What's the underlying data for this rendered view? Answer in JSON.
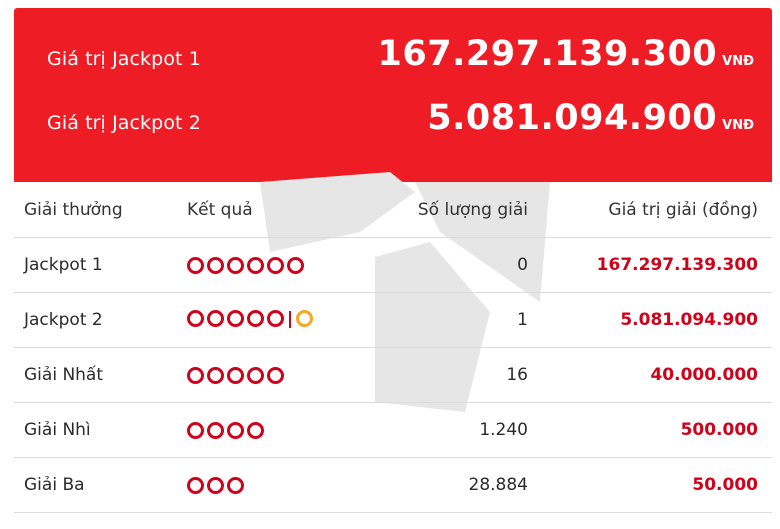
{
  "jackpots": [
    {
      "label": "Giá trị Jackpot 1",
      "value": "167.297.139.300",
      "unit": "VNĐ"
    },
    {
      "label": "Giá trị Jackpot 2",
      "value": "5.081.094.900",
      "unit": "VNĐ"
    }
  ],
  "table": {
    "headers": {
      "prize": "Giải thưởng",
      "result": "Kết quả",
      "count": "Số lượng giải",
      "value": "Giá trị giải (đồng)"
    },
    "rows": [
      {
        "prize": "Jackpot 1",
        "balls": 6,
        "bonus": false,
        "count": "0",
        "value": "167.297.139.300"
      },
      {
        "prize": "Jackpot 2",
        "balls": 5,
        "bonus": true,
        "count": "1",
        "value": "5.081.094.900"
      },
      {
        "prize": "Giải Nhất",
        "balls": 5,
        "bonus": false,
        "count": "16",
        "value": "40.000.000"
      },
      {
        "prize": "Giải Nhì",
        "balls": 4,
        "bonus": false,
        "count": "1.240",
        "value": "500.000"
      },
      {
        "prize": "Giải Ba",
        "balls": 3,
        "bonus": false,
        "count": "28.884",
        "value": "50.000"
      }
    ]
  },
  "colors": {
    "banner": "#ee1c25",
    "ball": "#d0021b",
    "bonus_ball": "#f5a623",
    "value_text": "#d0021b"
  }
}
